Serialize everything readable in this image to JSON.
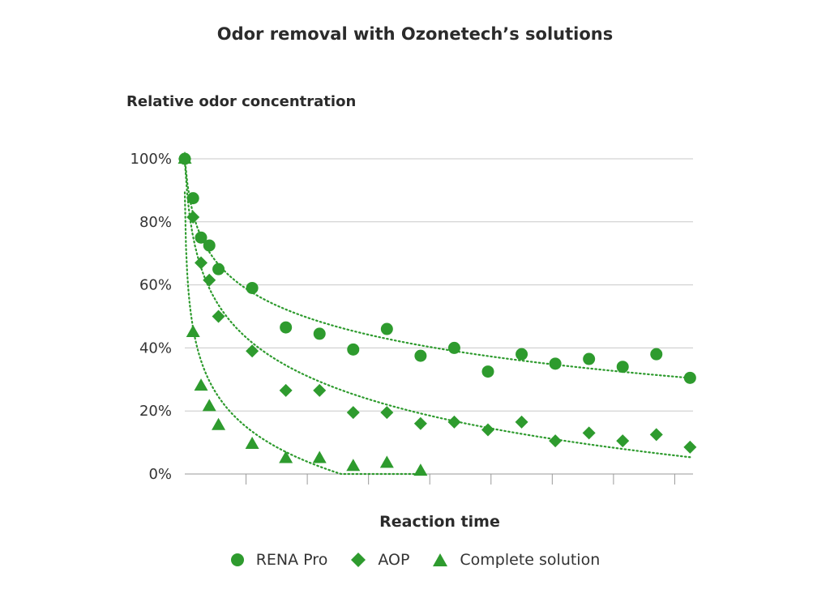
{
  "chart_data": {
    "type": "scatter",
    "title": "Odor removal with Ozonetech’s solutions",
    "ylabel": "Relative odor concentration",
    "xlabel": "Reaction time",
    "ylim": [
      0,
      100
    ],
    "xlim": [
      0,
      16.2
    ],
    "yticks": [
      "0%",
      "20%",
      "40%",
      "60%",
      "80%",
      "100%"
    ],
    "ytick_values": [
      0,
      20,
      40,
      60,
      80,
      100
    ],
    "xtick_values": [
      2,
      4,
      6,
      8,
      10,
      12,
      14,
      16
    ],
    "grid": true,
    "trendlines": "dotted",
    "legend_position": "bottom",
    "color": "#2e9b2e",
    "series": [
      {
        "name": "RENA Pro",
        "marker": "circle",
        "x": [
          0,
          0.27,
          0.53,
          0.8,
          1.1,
          2.2,
          3.3,
          4.4,
          5.5,
          6.6,
          7.7,
          8.8,
          9.9,
          11,
          12.1,
          13.2,
          14.3,
          15.4,
          16.5
        ],
        "y": [
          100,
          87.5,
          75,
          72.5,
          65,
          59,
          46.5,
          44.5,
          39.5,
          46,
          37.5,
          40,
          32.5,
          38,
          35,
          36.5,
          34,
          38,
          30.5
        ]
      },
      {
        "name": "AOP",
        "marker": "diamond",
        "x": [
          0,
          0.27,
          0.53,
          0.8,
          1.1,
          2.2,
          3.3,
          4.4,
          5.5,
          6.6,
          7.7,
          8.8,
          9.9,
          11,
          12.1,
          13.2,
          14.3,
          15.4,
          16.5
        ],
        "y": [
          100,
          81.5,
          67,
          61.5,
          50,
          39,
          26.5,
          26.5,
          19.5,
          19.5,
          16,
          16.5,
          14,
          16.5,
          10.5,
          13,
          10.5,
          12.5,
          8.5
        ]
      },
      {
        "name": "Complete solution",
        "marker": "triangle",
        "x": [
          0,
          0.27,
          0.53,
          0.8,
          1.1,
          2.2,
          3.3,
          4.4,
          5.5,
          6.6,
          7.7
        ],
        "y": [
          100,
          45,
          28,
          21.5,
          15.5,
          9.5,
          5,
          5,
          2.5,
          3.5,
          1
        ]
      }
    ]
  }
}
